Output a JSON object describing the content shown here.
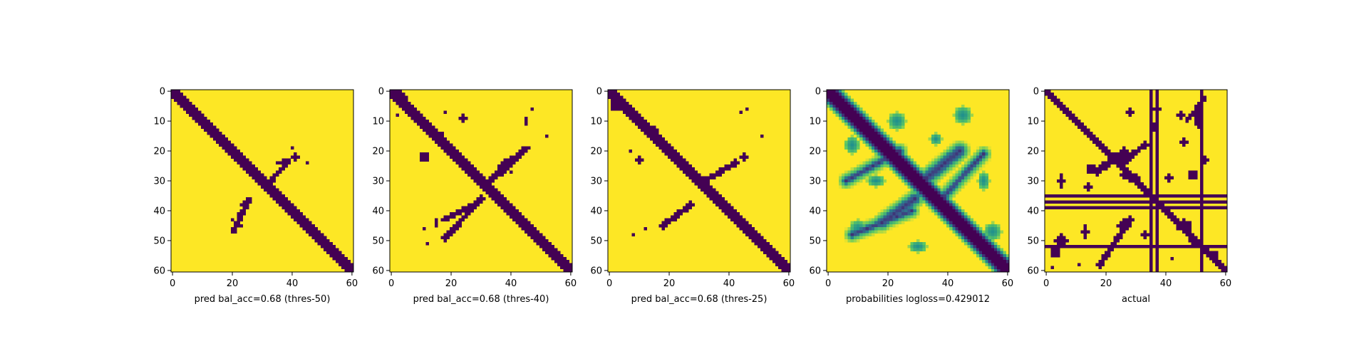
{
  "figure": {
    "panel_count": 5
  },
  "colors": {
    "low": "#440154",
    "high": "#fde725",
    "border": "#000000"
  },
  "chart_data": [
    {
      "type": "heatmap",
      "title": "",
      "xlabel": "pred bal_acc=0.68 (thres-50)",
      "ylabel": "",
      "grid_size": 61,
      "xlim": [
        0,
        60
      ],
      "ylim": [
        60,
        0
      ],
      "xticks": [
        0,
        20,
        40,
        60
      ],
      "yticks": [
        0,
        10,
        20,
        30,
        40,
        50,
        60
      ],
      "colormap": "binary-viridis",
      "diag_half_width": 1.6,
      "anti_strokes": [
        {
          "from": [
            20,
            47
          ],
          "to": [
            26,
            36
          ],
          "w": 0.9
        },
        {
          "from": [
            33,
            30
          ],
          "to": [
            39,
            23
          ],
          "w": 0.8
        }
      ],
      "blobs": [
        {
          "x": 37,
          "y": 24,
          "rx": 2,
          "ry": 1
        },
        {
          "x": 41,
          "y": 22,
          "rx": 1,
          "ry": 1
        },
        {
          "x": 23,
          "y": 41,
          "rx": 1,
          "ry": 1.5
        },
        {
          "x": 24,
          "y": 38,
          "rx": 1,
          "ry": 1
        },
        {
          "x": 20,
          "y": 43,
          "rx": 0.6,
          "ry": 0.6
        },
        {
          "x": 45,
          "y": 24,
          "rx": 0.5,
          "ry": 0.5
        },
        {
          "x": 40,
          "y": 19,
          "rx": 0.5,
          "ry": 0.5
        },
        {
          "x": 23,
          "y": 45,
          "rx": 0.5,
          "ry": 0.5
        }
      ]
    },
    {
      "type": "heatmap",
      "title": "",
      "xlabel": "pred bal_acc=0.68 (thres-40)",
      "ylabel": "",
      "grid_size": 61,
      "xlim": [
        0,
        60
      ],
      "ylim": [
        60,
        0
      ],
      "xticks": [
        0,
        20,
        40,
        60
      ],
      "yticks": [
        0,
        10,
        20,
        30,
        40,
        50,
        60
      ],
      "colormap": "binary-viridis",
      "diag_half_width": 1.8,
      "anti_strokes": [
        {
          "from": [
            18,
            49
          ],
          "to": [
            30,
            36
          ],
          "w": 1.0
        },
        {
          "from": [
            17,
            43
          ],
          "to": [
            28,
            38
          ],
          "w": 0.9
        },
        {
          "from": [
            31,
            32
          ],
          "to": [
            42,
            22
          ],
          "w": 1.1
        },
        {
          "from": [
            36,
            25
          ],
          "to": [
            46,
            19
          ],
          "w": 0.8
        }
      ],
      "blobs": [
        {
          "x": 3,
          "y": 2,
          "rx": 2,
          "ry": 2
        },
        {
          "x": 15,
          "y": 14,
          "rx": 2,
          "ry": 1
        },
        {
          "x": 11,
          "y": 22,
          "rx": 1.5,
          "ry": 1.5
        },
        {
          "x": 16,
          "y": 17,
          "rx": 1,
          "ry": 1
        },
        {
          "x": 24,
          "y": 9,
          "rx": 1.5,
          "ry": 1
        },
        {
          "x": 45,
          "y": 10,
          "rx": 0.8,
          "ry": 1
        },
        {
          "x": 47,
          "y": 6,
          "rx": 0.5,
          "ry": 0.5
        },
        {
          "x": 52,
          "y": 15,
          "rx": 0.5,
          "ry": 0.5
        },
        {
          "x": 18,
          "y": 7,
          "rx": 0.5,
          "ry": 0.5
        },
        {
          "x": 15,
          "y": 44,
          "rx": 0.6,
          "ry": 1
        },
        {
          "x": 11,
          "y": 46,
          "rx": 0.5,
          "ry": 0.5
        },
        {
          "x": 12,
          "y": 51,
          "rx": 0.6,
          "ry": 0.6
        },
        {
          "x": 44,
          "y": 20,
          "rx": 1.5,
          "ry": 1
        },
        {
          "x": 40,
          "y": 27,
          "rx": 0.8,
          "ry": 0.8
        },
        {
          "x": 2,
          "y": 8,
          "rx": 0.5,
          "ry": 0.5
        }
      ]
    },
    {
      "type": "heatmap",
      "title": "",
      "xlabel": "pred bal_acc=0.68 (thres-25)",
      "ylabel": "",
      "grid_size": 61,
      "xlim": [
        0,
        60
      ],
      "ylim": [
        60,
        0
      ],
      "xticks": [
        0,
        20,
        40,
        60
      ],
      "yticks": [
        0,
        10,
        20,
        30,
        40,
        50,
        60
      ],
      "colormap": "binary-viridis",
      "diag_half_width": 1.7,
      "anti_strokes": [
        {
          "from": [
            18,
            45
          ],
          "to": [
            27,
            38
          ],
          "w": 1.0
        },
        {
          "from": [
            32,
            30
          ],
          "to": [
            42,
            24
          ],
          "w": 1.0
        }
      ],
      "blobs": [
        {
          "x": 2,
          "y": 5,
          "rx": 1.5,
          "ry": 1.5
        },
        {
          "x": 15,
          "y": 13,
          "rx": 1,
          "ry": 1
        },
        {
          "x": 10,
          "y": 23,
          "rx": 1.2,
          "ry": 1.2
        },
        {
          "x": 16,
          "y": 18,
          "rx": 0.8,
          "ry": 0.8
        },
        {
          "x": 44,
          "y": 7,
          "rx": 0.5,
          "ry": 0.5
        },
        {
          "x": 46,
          "y": 6,
          "rx": 0.5,
          "ry": 0.5
        },
        {
          "x": 51,
          "y": 15,
          "rx": 0.5,
          "ry": 0.5
        },
        {
          "x": 7,
          "y": 20,
          "rx": 0.4,
          "ry": 0.4
        },
        {
          "x": 45,
          "y": 22,
          "rx": 1.5,
          "ry": 1
        },
        {
          "x": 40,
          "y": 26,
          "rx": 0.7,
          "ry": 0.7
        },
        {
          "x": 12,
          "y": 46,
          "rx": 0.5,
          "ry": 0.5
        },
        {
          "x": 8,
          "y": 48,
          "rx": 0.5,
          "ry": 0.5
        }
      ]
    },
    {
      "type": "heatmap",
      "title": "",
      "xlabel": "probabilities logloss=0.429012",
      "ylabel": "",
      "grid_size": 61,
      "xlim": [
        0,
        60
      ],
      "ylim": [
        60,
        0
      ],
      "xticks": [
        0,
        20,
        40,
        60
      ],
      "yticks": [
        0,
        10,
        20,
        30,
        40,
        50,
        60
      ],
      "colormap": "viridis",
      "diag_half_width": 1.8,
      "anti_strokes": [
        {
          "from": [
            18,
            44
          ],
          "to": [
            29,
            36
          ],
          "w": 1.6
        },
        {
          "from": [
            33,
            29
          ],
          "to": [
            44,
            20
          ],
          "w": 1.8
        },
        {
          "from": [
            36,
            38
          ],
          "to": [
            52,
            21
          ],
          "w": 1.0
        },
        {
          "from": [
            6,
            30
          ],
          "to": [
            24,
            20
          ],
          "w": 1.0
        },
        {
          "from": [
            8,
            48
          ],
          "to": [
            28,
            40
          ],
          "w": 1.0
        }
      ],
      "blobs": [
        {
          "x": 23,
          "y": 10,
          "rx": 3,
          "ry": 3
        },
        {
          "x": 8,
          "y": 18,
          "rx": 2.5,
          "ry": 3
        },
        {
          "x": 45,
          "y": 8,
          "rx": 3,
          "ry": 3
        },
        {
          "x": 10,
          "y": 46,
          "rx": 3,
          "ry": 3
        },
        {
          "x": 55,
          "y": 47,
          "rx": 3,
          "ry": 3
        },
        {
          "x": 4,
          "y": 2,
          "rx": 2.5,
          "ry": 2.5
        },
        {
          "x": 36,
          "y": 16,
          "rx": 2,
          "ry": 2
        },
        {
          "x": 52,
          "y": 30,
          "rx": 2,
          "ry": 3
        },
        {
          "x": 30,
          "y": 52,
          "rx": 3,
          "ry": 2
        },
        {
          "x": 16,
          "y": 30,
          "rx": 3,
          "ry": 2
        }
      ]
    },
    {
      "type": "heatmap",
      "title": "",
      "xlabel": "actual",
      "ylabel": "",
      "grid_size": 61,
      "xlim": [
        0,
        60
      ],
      "ylim": [
        60,
        0
      ],
      "xticks": [
        0,
        20,
        40,
        60
      ],
      "yticks": [
        0,
        10,
        20,
        30,
        40,
        50,
        60
      ],
      "colormap": "binary-viridis",
      "diag_half_width": 1.3,
      "rows": [
        35,
        37,
        39,
        52
      ],
      "cols": [
        35,
        37,
        52
      ],
      "anti_strokes": [
        {
          "from": [
            17,
            27
          ],
          "to": [
            26,
            20
          ],
          "w": 1.2
        },
        {
          "from": [
            25,
            24
          ],
          "to": [
            33,
            18
          ],
          "w": 1.0
        },
        {
          "from": [
            53,
            2
          ],
          "to": [
            47,
            10
          ],
          "w": 0.8
        },
        {
          "from": [
            18,
            58
          ],
          "to": [
            28,
            43
          ],
          "w": 1.0
        }
      ],
      "blobs": [
        {
          "x": 27,
          "y": 22,
          "rx": 2,
          "ry": 2
        },
        {
          "x": 29,
          "y": 29,
          "rx": 2,
          "ry": 1.5
        },
        {
          "x": 26,
          "y": 28,
          "rx": 1.5,
          "ry": 1
        },
        {
          "x": 15,
          "y": 26,
          "rx": 1.5,
          "ry": 1.5
        },
        {
          "x": 14,
          "y": 32,
          "rx": 1,
          "ry": 1
        },
        {
          "x": 5,
          "y": 30,
          "rx": 1,
          "ry": 2
        },
        {
          "x": 28,
          "y": 7,
          "rx": 1.5,
          "ry": 1
        },
        {
          "x": 36,
          "y": 12,
          "rx": 1,
          "ry": 1.5
        },
        {
          "x": 37,
          "y": 6,
          "rx": 1,
          "ry": 1
        },
        {
          "x": 45,
          "y": 8,
          "rx": 1,
          "ry": 1
        },
        {
          "x": 51,
          "y": 9,
          "rx": 1.5,
          "ry": 3
        },
        {
          "x": 46,
          "y": 17,
          "rx": 1,
          "ry": 1
        },
        {
          "x": 49,
          "y": 28,
          "rx": 1.5,
          "ry": 1.5
        },
        {
          "x": 41,
          "y": 29,
          "rx": 1.5,
          "ry": 1
        },
        {
          "x": 26,
          "y": 45,
          "rx": 2,
          "ry": 2
        },
        {
          "x": 33,
          "y": 48,
          "rx": 1,
          "ry": 1
        },
        {
          "x": 46,
          "y": 45,
          "rx": 2.5,
          "ry": 2
        },
        {
          "x": 49,
          "y": 50,
          "rx": 1.5,
          "ry": 1
        },
        {
          "x": 5,
          "y": 50,
          "rx": 2,
          "ry": 2
        },
        {
          "x": 3,
          "y": 54,
          "rx": 1.5,
          "ry": 1.5
        },
        {
          "x": 13,
          "y": 47,
          "rx": 1,
          "ry": 2
        },
        {
          "x": 11,
          "y": 58,
          "rx": 0.6,
          "ry": 0.6
        },
        {
          "x": 2,
          "y": 59,
          "rx": 0.6,
          "ry": 0.6
        },
        {
          "x": 42,
          "y": 56,
          "rx": 0.6,
          "ry": 0.6
        },
        {
          "x": 56,
          "y": 55,
          "rx": 1.5,
          "ry": 1.5
        },
        {
          "x": 20,
          "y": 55,
          "rx": 0.6,
          "ry": 0.6
        },
        {
          "x": 53,
          "y": 23,
          "rx": 1,
          "ry": 1
        }
      ]
    }
  ]
}
